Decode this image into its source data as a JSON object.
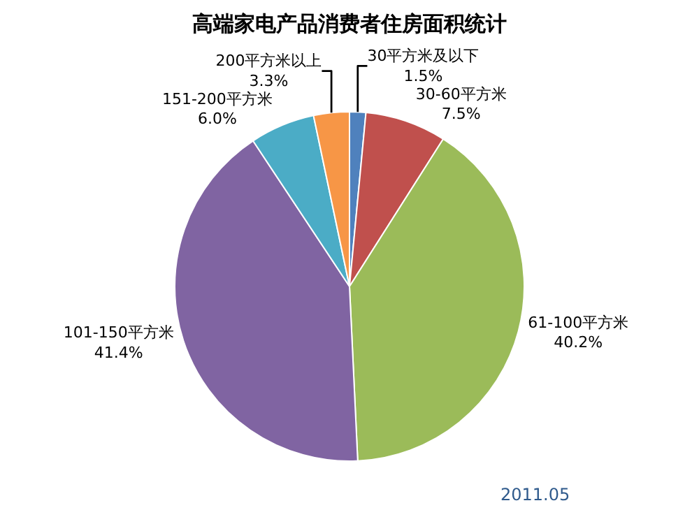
{
  "chart_data": {
    "type": "pie",
    "title": "高端家电产品消费者住房面积统计",
    "categories": [
      "30平方米及以下",
      "30-60平方米",
      "61-100平方米",
      "101-150平方米",
      "151-200平方米",
      "200平方米以上"
    ],
    "values": [
      1.5,
      7.5,
      40.2,
      41.4,
      6.0,
      3.3
    ],
    "value_labels": [
      "1.5%",
      "7.5%",
      "40.2%",
      "41.4%",
      "6.0%",
      "3.3%"
    ],
    "colors": [
      "#4f81bd",
      "#c0504d",
      "#9bbb59",
      "#8064a2",
      "#4bacc6",
      "#f79646"
    ],
    "annotations": [
      "2011.05"
    ],
    "legend": false
  }
}
